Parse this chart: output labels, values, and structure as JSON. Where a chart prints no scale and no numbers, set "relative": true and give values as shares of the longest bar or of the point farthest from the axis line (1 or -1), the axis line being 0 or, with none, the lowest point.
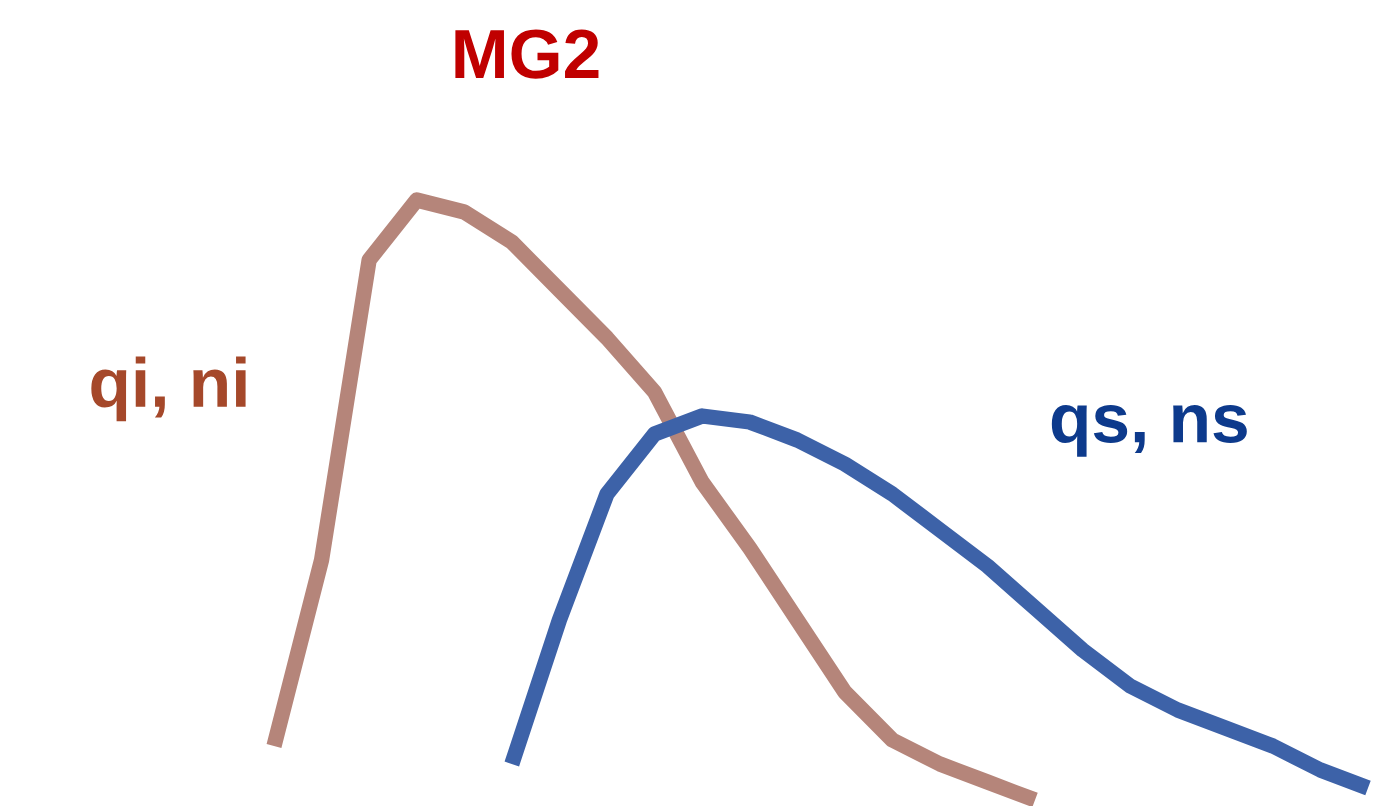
{
  "chart_data": {
    "type": "line",
    "title": "MG2",
    "relative": true,
    "legend": false,
    "marker": "none",
    "line_style": "solid",
    "categories": [
      null,
      null,
      null,
      null,
      null,
      null,
      null,
      null,
      null,
      null,
      null,
      null,
      null,
      null,
      null,
      null,
      null,
      null,
      null,
      null,
      null,
      null,
      null,
      null
    ],
    "series": [
      {
        "name": "qi, ni",
        "color": "#b5857a",
        "values": [
          0.09,
          0.4,
          0.9,
          1.0,
          0.98,
          0.93,
          0.85,
          0.77,
          0.68,
          0.53,
          0.42,
          0.3,
          0.18,
          0.1,
          0.06,
          0.03,
          0.0,
          null,
          null,
          null,
          null,
          null,
          null,
          null
        ]
      },
      {
        "name": "qs, ns",
        "color": "#3d62a8",
        "values": [
          null,
          null,
          null,
          null,
          null,
          0.06,
          0.3,
          0.51,
          0.61,
          0.64,
          0.63,
          0.6,
          0.56,
          0.51,
          0.45,
          0.39,
          0.32,
          0.25,
          0.19,
          0.15,
          0.12,
          0.09,
          0.05,
          0.02
        ]
      }
    ]
  }
}
